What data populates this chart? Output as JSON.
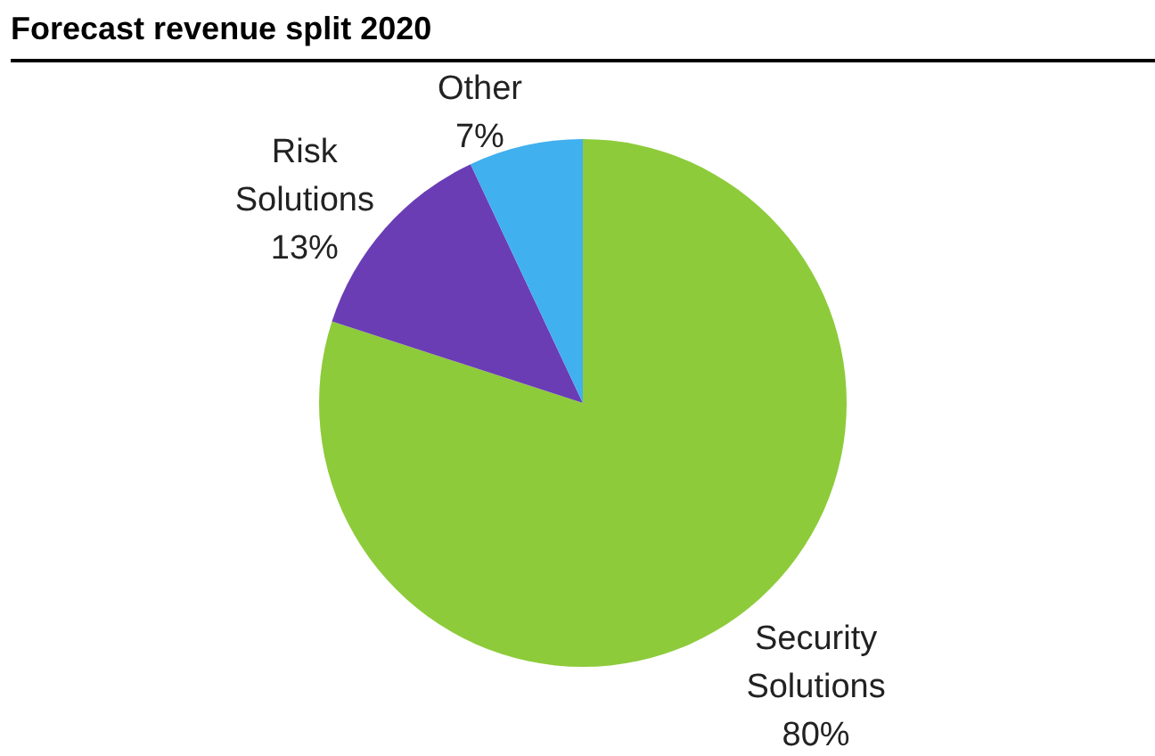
{
  "chart_data": {
    "type": "pie",
    "title": "Forecast revenue split 2020",
    "categories": [
      "Security Solutions",
      "Risk Solutions",
      "Other"
    ],
    "values": [
      80,
      13,
      7
    ],
    "value_labels": [
      "80%",
      "13%",
      "7%"
    ],
    "colors": [
      "#8dcb3a",
      "#6a3db5",
      "#40b0ee"
    ],
    "legend": false
  }
}
